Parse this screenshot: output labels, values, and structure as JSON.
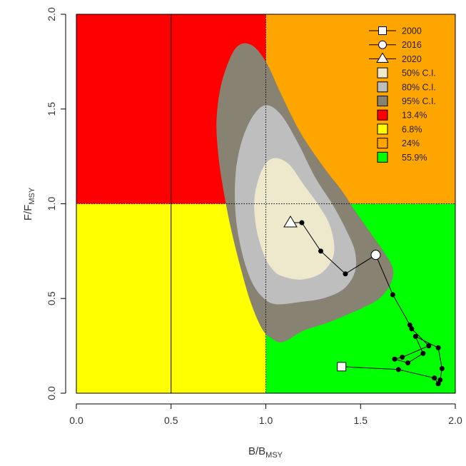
{
  "chart_data": {
    "type": "scatter",
    "title": "",
    "xlabel": {
      "main": "B/B",
      "sub": "MSY"
    },
    "ylabel": {
      "main": "F/F",
      "sub": "MSY"
    },
    "xlim": [
      0,
      2
    ],
    "ylim": [
      0,
      2
    ],
    "x_ticks": [
      "0.0",
      "0.5",
      "1.0",
      "1.5",
      "2.0"
    ],
    "y_ticks": [
      "0.0",
      "0.5",
      "1.0",
      "1.5",
      "2.0"
    ],
    "x_tick_values": [
      0,
      0.5,
      1,
      1.5,
      2
    ],
    "y_tick_values": [
      0,
      0.5,
      1,
      1.5,
      2
    ],
    "reference_lines": {
      "vertical_solid": 0.5,
      "vertical_dotted": 1.0,
      "horizontal_dotted": 1.0
    },
    "quadrants": [
      {
        "label": "13.4%",
        "color": "#ff0000",
        "x": [
          0,
          1
        ],
        "y": [
          1,
          2
        ]
      },
      {
        "label": "6.8%",
        "color": "#ffff00",
        "x": [
          0,
          1
        ],
        "y": [
          0,
          1
        ]
      },
      {
        "label": "24%",
        "color": "#ffa500",
        "x": [
          1,
          2
        ],
        "y": [
          1,
          2
        ]
      },
      {
        "label": "55.9%",
        "color": "#00ff00",
        "x": [
          1,
          2
        ],
        "y": [
          0,
          1
        ]
      }
    ],
    "confidence_regions": [
      {
        "label": "95% C.I.",
        "color": "#878272",
        "points": [
          [
            1.09,
            0.27
          ],
          [
            1.2,
            0.33
          ],
          [
            1.32,
            0.37
          ],
          [
            1.42,
            0.41
          ],
          [
            1.51,
            0.45
          ],
          [
            1.6,
            0.5
          ],
          [
            1.66,
            0.58
          ],
          [
            1.67,
            0.66
          ],
          [
            1.62,
            0.75
          ],
          [
            1.55,
            0.85
          ],
          [
            1.48,
            0.95
          ],
          [
            1.4,
            1.07
          ],
          [
            1.3,
            1.2
          ],
          [
            1.18,
            1.38
          ],
          [
            1.08,
            1.58
          ],
          [
            1.0,
            1.75
          ],
          [
            0.92,
            1.84
          ],
          [
            0.84,
            1.82
          ],
          [
            0.77,
            1.65
          ],
          [
            0.74,
            1.45
          ],
          [
            0.75,
            1.25
          ],
          [
            0.78,
            1.05
          ],
          [
            0.82,
            0.85
          ],
          [
            0.87,
            0.65
          ],
          [
            0.92,
            0.48
          ],
          [
            0.98,
            0.34
          ],
          [
            1.03,
            0.29
          ]
        ]
      },
      {
        "label": "80% C.I.",
        "color": "#bebebe",
        "points": [
          [
            1.05,
            0.47
          ],
          [
            1.17,
            0.48
          ],
          [
            1.3,
            0.5
          ],
          [
            1.41,
            0.55
          ],
          [
            1.47,
            0.64
          ],
          [
            1.47,
            0.75
          ],
          [
            1.42,
            0.87
          ],
          [
            1.35,
            1.0
          ],
          [
            1.26,
            1.14
          ],
          [
            1.17,
            1.32
          ],
          [
            1.08,
            1.47
          ],
          [
            1.0,
            1.52
          ],
          [
            0.93,
            1.46
          ],
          [
            0.87,
            1.32
          ],
          [
            0.84,
            1.15
          ],
          [
            0.84,
            0.95
          ],
          [
            0.87,
            0.76
          ],
          [
            0.92,
            0.6
          ],
          [
            0.98,
            0.51
          ]
        ]
      },
      {
        "label": "50% C.I.",
        "color": "#eee8cd",
        "points": [
          [
            1.08,
            0.62
          ],
          [
            1.19,
            0.6
          ],
          [
            1.3,
            0.64
          ],
          [
            1.36,
            0.74
          ],
          [
            1.34,
            0.88
          ],
          [
            1.28,
            0.99
          ],
          [
            1.2,
            1.1
          ],
          [
            1.12,
            1.21
          ],
          [
            1.04,
            1.24
          ],
          [
            0.98,
            1.18
          ],
          [
            0.94,
            1.03
          ],
          [
            0.95,
            0.87
          ],
          [
            0.99,
            0.73
          ],
          [
            1.03,
            0.66
          ]
        ]
      }
    ],
    "trajectory": [
      {
        "x": 1.4,
        "y": 0.14,
        "marker": "square",
        "label": "2000"
      },
      {
        "x": 1.7,
        "y": 0.125
      },
      {
        "x": 1.89,
        "y": 0.08
      },
      {
        "x": 1.91,
        "y": 0.05
      },
      {
        "x": 1.92,
        "y": 0.07
      },
      {
        "x": 1.93,
        "y": 0.13
      },
      {
        "x": 1.91,
        "y": 0.24
      },
      {
        "x": 1.79,
        "y": 0.3
      },
      {
        "x": 1.83,
        "y": 0.21
      },
      {
        "x": 1.75,
        "y": 0.16
      },
      {
        "x": 1.68,
        "y": 0.18
      },
      {
        "x": 1.72,
        "y": 0.19
      },
      {
        "x": 1.86,
        "y": 0.25
      },
      {
        "x": 1.77,
        "y": 0.34
      },
      {
        "x": 1.76,
        "y": 0.36
      },
      {
        "x": 1.67,
        "y": 0.52
      },
      {
        "x": 1.58,
        "y": 0.73,
        "marker": "circle",
        "label": "2016"
      },
      {
        "x": 1.42,
        "y": 0.63
      },
      {
        "x": 1.29,
        "y": 0.75
      },
      {
        "x": 1.19,
        "y": 0.9
      },
      {
        "x": 1.13,
        "y": 0.9,
        "marker": "triangle",
        "label": "2020"
      }
    ],
    "legend": {
      "placement": "top-right",
      "items": [
        {
          "label": "2000",
          "kind": "line-square"
        },
        {
          "label": "2016",
          "kind": "line-circle"
        },
        {
          "label": "2020",
          "kind": "line-triangle"
        },
        {
          "label": "50% C.I.",
          "kind": "box",
          "color": "#eee8cd"
        },
        {
          "label": "80% C.I.",
          "kind": "box",
          "color": "#bebebe"
        },
        {
          "label": "95% C.I.",
          "kind": "box",
          "color": "#878272"
        },
        {
          "label": "13.4%",
          "kind": "box",
          "color": "#ff0000"
        },
        {
          "label": "6.8%",
          "kind": "box",
          "color": "#ffff00"
        },
        {
          "label": "24%",
          "kind": "box",
          "color": "#ffa500"
        },
        {
          "label": "55.9%",
          "kind": "box",
          "color": "#00ff00"
        }
      ]
    },
    "grid": false
  }
}
